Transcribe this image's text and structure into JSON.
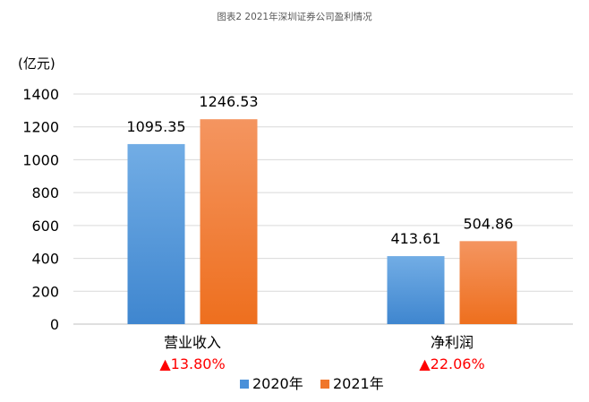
{
  "chart_data": {
    "type": "bar",
    "title": "图表2  2021年深圳证券公司盈利情况",
    "ylabel": "(亿元)",
    "xlabel": "",
    "ylim": [
      0,
      1400
    ],
    "yticks": [
      0,
      200,
      400,
      600,
      800,
      1000,
      1200,
      1400
    ],
    "grid": true,
    "legend_position": "bottom",
    "categories": [
      "营业收入",
      "净利润"
    ],
    "growth": [
      "▲13.80%",
      "▲22.06%"
    ],
    "series": [
      {
        "name": "2020年",
        "values": [
          1095.35,
          413.61
        ],
        "labels": [
          "1095.35",
          "413.61"
        ],
        "color": "#4a90d9"
      },
      {
        "name": "2021年",
        "values": [
          1246.53,
          504.86
        ],
        "labels": [
          "1246.53",
          "504.86"
        ],
        "color": "#f0762a"
      }
    ],
    "growth_color": "#ff0000"
  }
}
